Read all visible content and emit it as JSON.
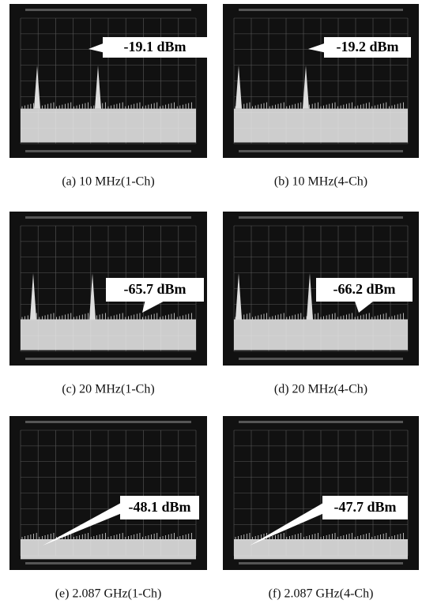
{
  "figure": {
    "panels": [
      {
        "label": "-19.1 dBm",
        "caption": "(a)  10  MHz(1-Ch)"
      },
      {
        "label": "-19.2 dBm",
        "caption": "(b)  10  MHz(4-Ch)"
      },
      {
        "label": "-65.7 dBm",
        "caption": "(c)  20  MHz(1-Ch)"
      },
      {
        "label": "-66.2 dBm",
        "caption": "(d)  20  MHz(4-Ch)"
      },
      {
        "label": "-48.1 dBm",
        "caption": "(e)  2.087  GHz(1-Ch)"
      },
      {
        "label": "-47.7 dBm",
        "caption": "(f)  2.087  GHz(4-Ch)"
      }
    ]
  }
}
